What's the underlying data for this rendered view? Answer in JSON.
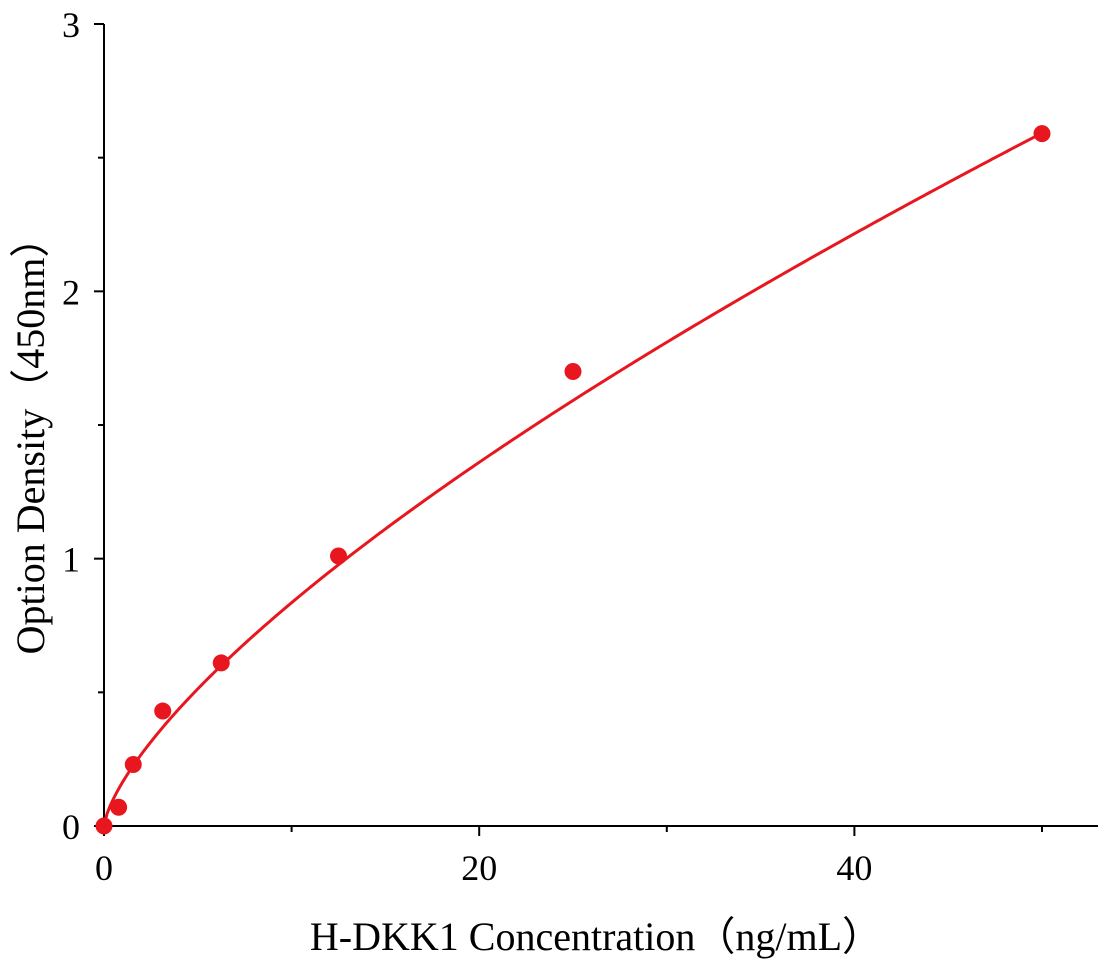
{
  "chart_data": {
    "type": "scatter",
    "title": "",
    "xlabel": "H-DKK1 Concentration（ng/mL）",
    "ylabel": "Option Density（450nm）",
    "xlim": [
      0,
      52.5
    ],
    "ylim": [
      0,
      3
    ],
    "x_ticks": [
      0,
      20,
      40
    ],
    "x_tick_labels": [
      "0",
      "20",
      "40"
    ],
    "x_minor_ticks": [
      10,
      30,
      50
    ],
    "y_ticks": [
      0,
      1,
      2,
      3
    ],
    "y_tick_labels": [
      "0",
      "1",
      "2",
      "3"
    ],
    "y_minor_ticks": [
      0.5,
      1.5,
      2.5
    ],
    "grid": false,
    "legend": "none",
    "series": [
      {
        "points": [
          {
            "x": 0,
            "y": 0.0
          },
          {
            "x": 0.78,
            "y": 0.07
          },
          {
            "x": 1.56,
            "y": 0.23
          },
          {
            "x": 3.13,
            "y": 0.43
          },
          {
            "x": 6.25,
            "y": 0.61
          },
          {
            "x": 12.5,
            "y": 1.01
          },
          {
            "x": 25,
            "y": 1.7
          },
          {
            "x": 50,
            "y": 2.59
          }
        ],
        "fit_curve": {
          "form": "y = a * x^b",
          "a": 0.1653,
          "b": 0.7036
        }
      }
    ],
    "colors": {
      "series": "#e8171f",
      "axis": "#000000"
    }
  }
}
